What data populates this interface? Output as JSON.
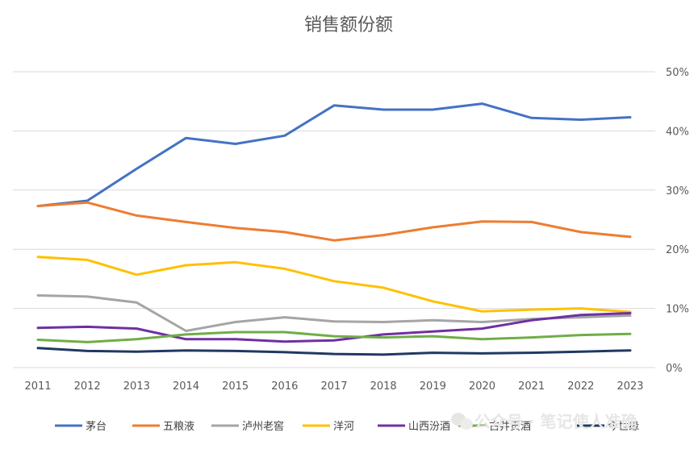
{
  "chart_data": {
    "type": "line",
    "title": "销售额份额",
    "categories": [
      "2011",
      "2012",
      "2013",
      "2014",
      "2015",
      "2016",
      "2017",
      "2018",
      "2019",
      "2020",
      "2021",
      "2022",
      "2023"
    ],
    "y_axis": {
      "position": "right",
      "ylim": [
        0,
        50
      ],
      "ticks": [
        "0%",
        "10%",
        "20%",
        "30%",
        "40%",
        "50%"
      ],
      "tick_values": [
        0,
        10,
        20,
        30,
        40,
        50
      ]
    },
    "grid": true,
    "legend_position": "bottom",
    "series": [
      {
        "name": "茅台",
        "color": "#4472C4",
        "values": [
          27.3,
          28.2,
          33.6,
          38.8,
          37.8,
          39.2,
          44.3,
          43.6,
          43.6,
          44.6,
          42.2,
          41.9,
          42.3
        ]
      },
      {
        "name": "五粮液",
        "color": "#ED7D31",
        "values": [
          27.3,
          27.9,
          25.7,
          24.6,
          23.6,
          22.9,
          21.5,
          22.4,
          23.7,
          24.7,
          24.6,
          22.9,
          22.1
        ]
      },
      {
        "name": "泸州老窖",
        "color": "#A5A5A5",
        "values": [
          12.2,
          12.0,
          11.0,
          6.2,
          7.7,
          8.5,
          7.8,
          7.7,
          8.0,
          7.7,
          8.2,
          8.5,
          8.8
        ]
      },
      {
        "name": "洋河",
        "color": "#FFC000",
        "values": [
          18.7,
          18.2,
          15.7,
          17.3,
          17.8,
          16.7,
          14.6,
          13.5,
          11.2,
          9.5,
          9.8,
          10.0,
          9.4
        ]
      },
      {
        "name": "山西汾酒",
        "color": "#7030A0",
        "values": [
          6.7,
          6.9,
          6.6,
          4.8,
          4.8,
          4.4,
          4.6,
          5.6,
          6.1,
          6.6,
          8.0,
          8.9,
          9.2
        ]
      },
      {
        "name": "古井贡酒",
        "color": "#70AD47",
        "values": [
          4.7,
          4.3,
          4.8,
          5.6,
          6.0,
          6.0,
          5.3,
          5.1,
          5.3,
          4.8,
          5.1,
          5.5,
          5.7
        ]
      },
      {
        "name": "今世缘",
        "color": "#203864",
        "values": [
          3.3,
          2.8,
          2.7,
          2.9,
          2.8,
          2.6,
          2.3,
          2.2,
          2.5,
          2.4,
          2.5,
          2.7,
          2.9
        ]
      }
    ]
  },
  "watermark": {
    "icon": "wechat-icon",
    "text": "公众号 · 笔记使人准确"
  }
}
